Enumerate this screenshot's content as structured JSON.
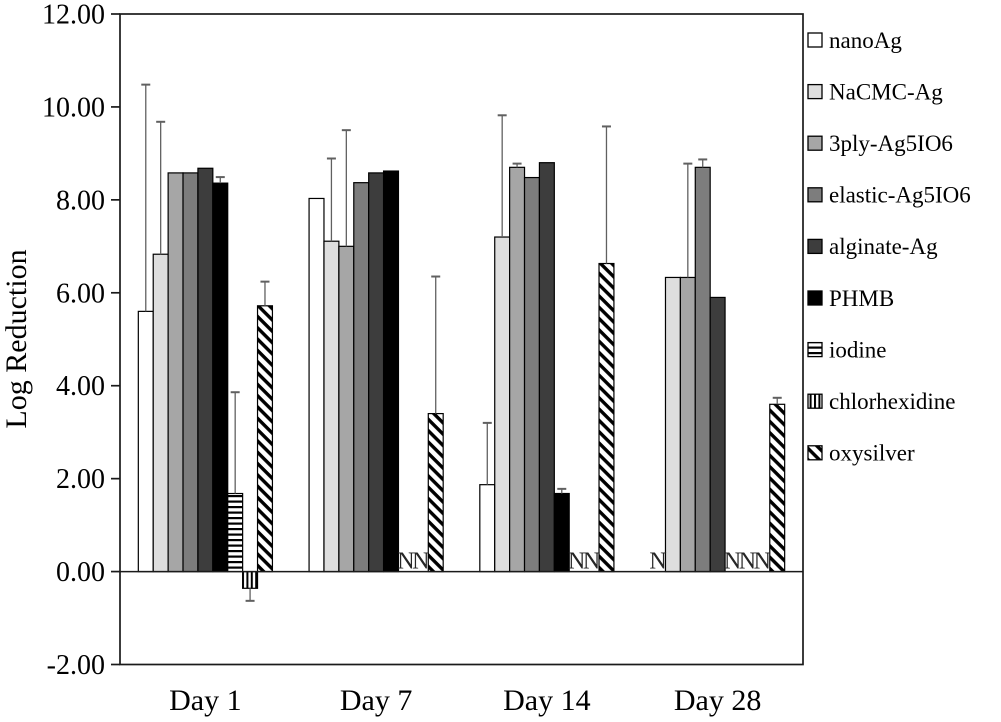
{
  "figure": {
    "background": "#ffffff",
    "axis_color": "#1a1a1a",
    "error_bar_color": "#606060",
    "na_label_color": "#262626"
  },
  "chart_data": {
    "type": "bar",
    "title": "",
    "xlabel": "",
    "ylabel": "Log Reduction",
    "ylim": [
      -2,
      12
    ],
    "grid": false,
    "legend_position": "right",
    "na_marker": "N",
    "yticks": [
      {
        "value": 12,
        "label": "12.00"
      },
      {
        "value": 10,
        "label": "10.00"
      },
      {
        "value": 8,
        "label": "8.00"
      },
      {
        "value": 6,
        "label": "6.00"
      },
      {
        "value": 4,
        "label": "4.00"
      },
      {
        "value": 2,
        "label": "2.00"
      },
      {
        "value": 0,
        "label": "0.00"
      },
      {
        "value": -2,
        "label": "-2.00"
      }
    ],
    "categories": [
      "Day 1",
      "Day 7",
      "Day 14",
      "Day 28"
    ],
    "series": [
      {
        "name": "nanoAg",
        "fill": "#ffffff",
        "pattern": "solid",
        "values": [
          5.6,
          8.03,
          1.87,
          "N"
        ],
        "err_up": [
          4.88,
          0,
          1.33,
          0
        ],
        "err_down": [
          0,
          0,
          0,
          0
        ]
      },
      {
        "name": "NaCMC-Ag",
        "fill": "#dedede",
        "pattern": "solid",
        "values": [
          6.83,
          7.11,
          7.2,
          6.33
        ],
        "err_up": [
          2.85,
          1.78,
          2.62,
          0
        ],
        "err_down": [
          0,
          0,
          0,
          0
        ]
      },
      {
        "name": "3ply-Ag5IO6",
        "fill": "#a6a6a6",
        "pattern": "solid",
        "values": [
          8.58,
          7.0,
          8.7,
          6.33
        ],
        "err_up": [
          0,
          2.5,
          0.08,
          2.45
        ],
        "err_down": [
          0,
          0,
          0,
          0
        ]
      },
      {
        "name": "elastic-Ag5IO6",
        "fill": "#7d7d7d",
        "pattern": "solid",
        "values": [
          8.58,
          8.37,
          8.48,
          8.7
        ],
        "err_up": [
          0,
          0,
          0,
          0.17
        ],
        "err_down": [
          0,
          0,
          0,
          0
        ]
      },
      {
        "name": "alginate-Ag",
        "fill": "#3d3d3d",
        "pattern": "solid",
        "values": [
          8.68,
          8.58,
          8.8,
          5.9
        ],
        "err_up": [
          0,
          0,
          0,
          0
        ],
        "err_down": [
          0,
          0,
          0,
          0
        ]
      },
      {
        "name": "PHMB",
        "fill": "#000000",
        "pattern": "solid",
        "values": [
          8.36,
          8.62,
          1.68,
          "N"
        ],
        "err_up": [
          0.13,
          0,
          0.1,
          0
        ],
        "err_down": [
          0,
          0,
          0,
          0
        ]
      },
      {
        "name": "iodine",
        "fill": "#ffffff",
        "pattern": "horizontal-stripes",
        "values": [
          1.68,
          "N",
          "N",
          "N"
        ],
        "err_up": [
          2.18,
          0,
          0,
          0
        ],
        "err_down": [
          0,
          0,
          0,
          0
        ]
      },
      {
        "name": "chlorhexidine",
        "fill": "#ffffff",
        "pattern": "vertical-stripes",
        "values": [
          -0.36,
          "N",
          "N",
          "N"
        ],
        "err_up": [
          0,
          0,
          0,
          0
        ],
        "err_down": [
          0.27,
          0,
          0,
          0
        ]
      },
      {
        "name": "oxysilver",
        "fill": "#ffffff",
        "pattern": "diagonal-stripes",
        "values": [
          5.72,
          3.4,
          6.63,
          3.6
        ],
        "err_up": [
          0.52,
          2.95,
          2.95,
          0.14
        ],
        "err_down": [
          0,
          0,
          0,
          0
        ]
      }
    ]
  }
}
